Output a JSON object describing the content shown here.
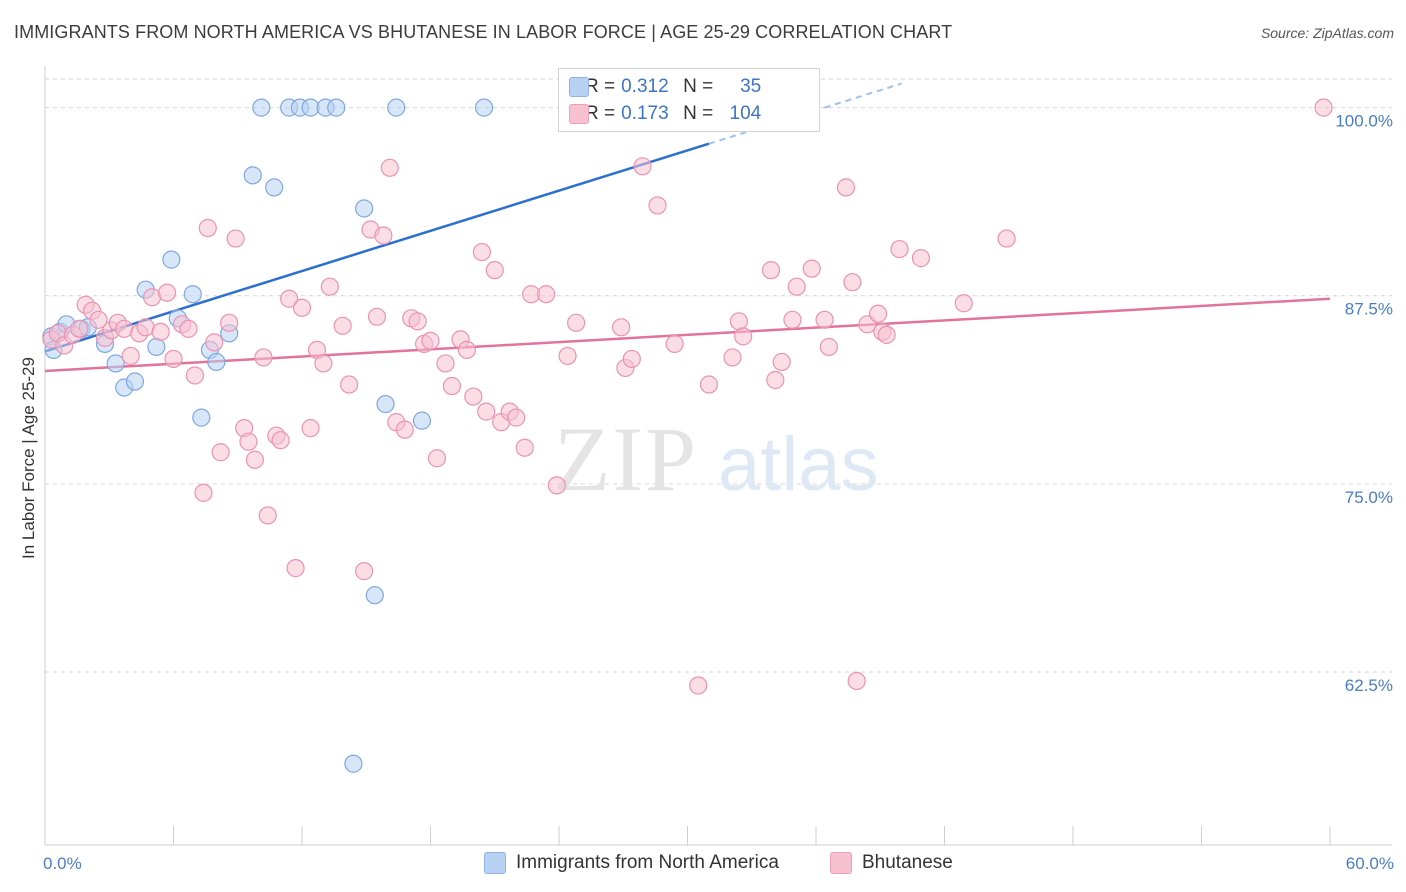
{
  "header": {
    "title": "IMMIGRANTS FROM NORTH AMERICA VS BHUTANESE IN LABOR FORCE | AGE 25-29 CORRELATION CHART",
    "source": "Source: ZipAtlas.com"
  },
  "watermark": {
    "part1": "ZIP",
    "part2": "atlas"
  },
  "legend": {
    "rows": [
      {
        "r_label": "R =",
        "r_value": "0.312",
        "n_label": "N =",
        "n_value": "35"
      },
      {
        "r_label": "R =",
        "r_value": "0.173",
        "n_label": "N =",
        "n_value": "104"
      }
    ]
  },
  "colors": {
    "blue_fill": "#b7d1f3",
    "blue_stroke": "#7fa8e0",
    "blue_line": "#2b6fcf",
    "pink_fill": "#f7c1d2",
    "pink_stroke": "#ea93b1",
    "pink_line": "#e2739c",
    "grid": "#d6d6d6",
    "tick_text": "#4a7cc7"
  },
  "chart_data": {
    "type": "scatter",
    "title": "IMMIGRANTS FROM NORTH AMERICA VS BHUTANESE IN LABOR FORCE | AGE 25-29 CORRELATION CHART",
    "xlabel": "",
    "ylabel": "In Labor Force | Age 25-29",
    "xlim": [
      0,
      60
    ],
    "ylim": [
      51,
      102.5
    ],
    "x_tick_labels": [
      "0.0%",
      "60.0%"
    ],
    "y_ticks": [
      62.5,
      75.0,
      87.5,
      100.0
    ],
    "y_tick_labels": [
      "62.5%",
      "75.0%",
      "87.5%",
      "100.0%"
    ],
    "grid": "horizontal dashed",
    "legend_position": "top-center",
    "series": [
      {
        "name": "Immigrants from North America",
        "color": "blue",
        "trend": {
          "x": [
            0,
            31
          ],
          "y": [
            83.8,
            97.6
          ]
        },
        "trend_dashed": {
          "x": [
            31,
            40
          ],
          "y": [
            97.6,
            101.6
          ]
        },
        "points": [
          [
            0.3,
            84.8
          ],
          [
            0.4,
            83.9
          ],
          [
            0.7,
            85.1
          ],
          [
            1.0,
            85.6
          ],
          [
            1.7,
            85.3
          ],
          [
            2.0,
            85.4
          ],
          [
            2.8,
            84.3
          ],
          [
            3.3,
            83.0
          ],
          [
            3.7,
            81.4
          ],
          [
            4.2,
            81.8
          ],
          [
            4.7,
            87.9
          ],
          [
            5.2,
            84.1
          ],
          [
            5.9,
            89.9
          ],
          [
            6.2,
            86.0
          ],
          [
            6.9,
            87.6
          ],
          [
            7.3,
            79.4
          ],
          [
            7.7,
            83.9
          ],
          [
            8.0,
            83.1
          ],
          [
            8.6,
            85.0
          ],
          [
            9.7,
            95.5
          ],
          [
            10.1,
            100.0
          ],
          [
            10.7,
            94.7
          ],
          [
            11.4,
            100.0
          ],
          [
            11.9,
            100.0
          ],
          [
            12.4,
            100.0
          ],
          [
            13.1,
            100.0
          ],
          [
            13.6,
            100.0
          ],
          [
            14.4,
            56.4
          ],
          [
            14.9,
            93.3
          ],
          [
            15.4,
            67.6
          ],
          [
            15.9,
            80.3
          ],
          [
            16.4,
            100.0
          ],
          [
            17.6,
            79.2
          ],
          [
            20.5,
            100.0
          ],
          [
            24.8,
            100.0
          ]
        ]
      },
      {
        "name": "Bhutanese",
        "color": "pink",
        "trend": {
          "x": [
            0,
            60
          ],
          "y": [
            82.5,
            87.3
          ]
        },
        "points": [
          [
            0.3,
            84.6
          ],
          [
            0.6,
            85.0
          ],
          [
            0.9,
            84.2
          ],
          [
            1.3,
            84.9
          ],
          [
            1.6,
            85.3
          ],
          [
            1.9,
            86.9
          ],
          [
            2.2,
            86.5
          ],
          [
            2.5,
            85.9
          ],
          [
            2.8,
            84.7
          ],
          [
            3.1,
            85.2
          ],
          [
            3.4,
            85.7
          ],
          [
            3.7,
            85.3
          ],
          [
            4.0,
            83.5
          ],
          [
            4.4,
            85.0
          ],
          [
            4.7,
            85.4
          ],
          [
            5.0,
            87.4
          ],
          [
            5.4,
            85.1
          ],
          [
            5.7,
            87.7
          ],
          [
            6.0,
            83.3
          ],
          [
            6.4,
            85.6
          ],
          [
            6.7,
            85.3
          ],
          [
            7.0,
            82.2
          ],
          [
            7.4,
            74.4
          ],
          [
            7.6,
            92.0
          ],
          [
            7.9,
            84.4
          ],
          [
            8.2,
            77.1
          ],
          [
            8.6,
            85.7
          ],
          [
            8.9,
            91.3
          ],
          [
            9.3,
            78.7
          ],
          [
            9.5,
            77.8
          ],
          [
            9.8,
            76.6
          ],
          [
            10.2,
            83.4
          ],
          [
            10.4,
            72.9
          ],
          [
            10.8,
            78.2
          ],
          [
            11.0,
            77.9
          ],
          [
            11.4,
            87.3
          ],
          [
            11.7,
            69.4
          ],
          [
            12.0,
            86.7
          ],
          [
            12.4,
            78.7
          ],
          [
            12.7,
            83.9
          ],
          [
            13.0,
            83.0
          ],
          [
            13.3,
            88.1
          ],
          [
            13.9,
            85.5
          ],
          [
            14.2,
            81.6
          ],
          [
            14.9,
            69.2
          ],
          [
            15.2,
            91.9
          ],
          [
            15.5,
            86.1
          ],
          [
            15.8,
            91.5
          ],
          [
            16.1,
            96.0
          ],
          [
            16.4,
            79.1
          ],
          [
            16.8,
            78.6
          ],
          [
            17.1,
            86.0
          ],
          [
            17.4,
            85.8
          ],
          [
            17.7,
            84.3
          ],
          [
            18.0,
            84.5
          ],
          [
            18.3,
            76.7
          ],
          [
            18.7,
            83.0
          ],
          [
            19.0,
            81.5
          ],
          [
            19.4,
            84.6
          ],
          [
            19.7,
            83.9
          ],
          [
            20.0,
            80.8
          ],
          [
            20.4,
            90.4
          ],
          [
            20.6,
            79.8
          ],
          [
            21.0,
            89.2
          ],
          [
            21.3,
            79.1
          ],
          [
            21.7,
            79.8
          ],
          [
            22.0,
            79.4
          ],
          [
            22.4,
            77.4
          ],
          [
            22.7,
            87.6
          ],
          [
            23.4,
            87.6
          ],
          [
            23.9,
            74.9
          ],
          [
            24.4,
            83.5
          ],
          [
            24.8,
            85.7
          ],
          [
            26.9,
            85.4
          ],
          [
            27.1,
            82.7
          ],
          [
            27.4,
            83.3
          ],
          [
            27.9,
            96.1
          ],
          [
            28.6,
            93.5
          ],
          [
            29.4,
            84.3
          ],
          [
            30.5,
            61.6
          ],
          [
            31.0,
            81.6
          ],
          [
            32.1,
            83.4
          ],
          [
            32.4,
            85.8
          ],
          [
            32.6,
            84.8
          ],
          [
            33.9,
            89.2
          ],
          [
            34.1,
            81.9
          ],
          [
            34.4,
            83.1
          ],
          [
            34.9,
            85.9
          ],
          [
            35.1,
            88.1
          ],
          [
            35.8,
            89.3
          ],
          [
            36.4,
            85.9
          ],
          [
            36.6,
            84.1
          ],
          [
            37.4,
            94.7
          ],
          [
            37.7,
            88.4
          ],
          [
            37.9,
            61.9
          ],
          [
            38.4,
            85.6
          ],
          [
            38.9,
            86.3
          ],
          [
            39.1,
            85.1
          ],
          [
            39.3,
            84.9
          ],
          [
            39.9,
            90.6
          ],
          [
            40.9,
            90.0
          ],
          [
            42.9,
            87.0
          ],
          [
            44.9,
            91.3
          ],
          [
            59.7,
            100.0
          ]
        ]
      }
    ]
  }
}
